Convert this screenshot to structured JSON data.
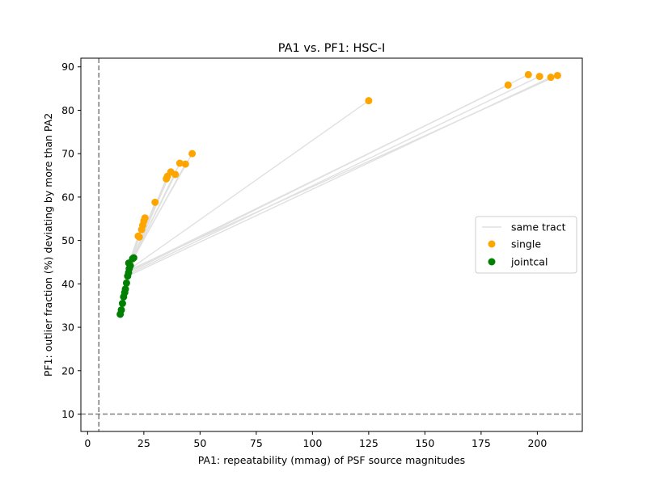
{
  "chart_data": {
    "type": "scatter",
    "title": "PA1 vs. PF1: HSC-I",
    "xlabel": "PA1: repeatability (mmag) of PSF source magnitudes",
    "ylabel": "PF1: outlier fraction (%) deviating by more than PA2",
    "xlim": [
      -3,
      220
    ],
    "ylim": [
      6,
      92
    ],
    "xticks": [
      0,
      25,
      50,
      75,
      100,
      125,
      150,
      175,
      200
    ],
    "yticks": [
      10,
      20,
      30,
      40,
      50,
      60,
      70,
      80,
      90
    ],
    "grid": false,
    "threshold_lines": {
      "x": 5,
      "y": 10
    },
    "legend": {
      "placement": "center-right",
      "entries": [
        "same tract",
        "single",
        "jointcal"
      ]
    },
    "colors": {
      "single": "#ffa500",
      "jointcal": "#008000",
      "same_tract": "#e0e0e0",
      "threshold": "#808080"
    },
    "series": [
      {
        "name": "single",
        "points": [
          [
            22.5,
            51
          ],
          [
            23,
            50.8
          ],
          [
            24,
            52.5
          ],
          [
            24.5,
            53.5
          ],
          [
            25,
            54.5
          ],
          [
            25.5,
            55.2
          ],
          [
            30,
            58.8
          ],
          [
            35,
            64.2
          ],
          [
            35.5,
            64.8
          ],
          [
            37,
            65.8
          ],
          [
            39,
            65.2
          ],
          [
            41,
            67.8
          ],
          [
            43.5,
            67.6
          ],
          [
            46.5,
            70
          ],
          [
            125,
            82.2
          ],
          [
            187,
            85.8
          ],
          [
            196,
            88.2
          ],
          [
            201,
            87.8
          ],
          [
            206,
            87.6
          ],
          [
            209,
            88
          ]
        ]
      },
      {
        "name": "jointcal",
        "points": [
          [
            14.5,
            33
          ],
          [
            15,
            34
          ],
          [
            15.5,
            35.5
          ],
          [
            16,
            37
          ],
          [
            16.5,
            38
          ],
          [
            16.8,
            38.8
          ],
          [
            17.3,
            40.2
          ],
          [
            17.8,
            41.8
          ],
          [
            18.2,
            42.6
          ],
          [
            18.5,
            43.5
          ],
          [
            19,
            44.2
          ],
          [
            18.3,
            44.8
          ],
          [
            20,
            45.8
          ],
          [
            20.5,
            46
          ]
        ]
      }
    ],
    "same_tract_pairs": [
      [
        [
          22.5,
          51
        ],
        [
          17.3,
          43.0
        ]
      ],
      [
        [
          23,
          50.8
        ],
        [
          17.8,
          42.8
        ]
      ],
      [
        [
          24,
          52.5
        ],
        [
          18.2,
          43.2
        ]
      ],
      [
        [
          24.5,
          53.5
        ],
        [
          18.5,
          43.8
        ]
      ],
      [
        [
          25,
          54.5
        ],
        [
          19,
          44.2
        ]
      ],
      [
        [
          25.5,
          55.2
        ],
        [
          18.3,
          44.8
        ]
      ],
      [
        [
          30,
          58.8
        ],
        [
          19,
          44.0
        ]
      ],
      [
        [
          35,
          64.2
        ],
        [
          20,
          45.8
        ]
      ],
      [
        [
          35.5,
          64.8
        ],
        [
          20.5,
          46
        ]
      ],
      [
        [
          37,
          65.8
        ],
        [
          20,
          45.5
        ]
      ],
      [
        [
          39,
          65.2
        ],
        [
          19.5,
          45.2
        ]
      ],
      [
        [
          41,
          67.8
        ],
        [
          20.3,
          45.9
        ]
      ],
      [
        [
          43.5,
          67.6
        ],
        [
          20.5,
          46
        ]
      ],
      [
        [
          46.5,
          70
        ],
        [
          20,
          45.8
        ]
      ],
      [
        [
          125,
          82.2
        ],
        [
          19,
          43.5
        ]
      ],
      [
        [
          187,
          85.8
        ],
        [
          18.5,
          43.0
        ]
      ],
      [
        [
          196,
          88.2
        ],
        [
          18.2,
          42.6
        ]
      ],
      [
        [
          201,
          87.8
        ],
        [
          18,
          42.2
        ]
      ],
      [
        [
          206,
          87.6
        ],
        [
          17.8,
          41.8
        ]
      ],
      [
        [
          209,
          88
        ],
        [
          18.5,
          43.2
        ]
      ]
    ]
  }
}
